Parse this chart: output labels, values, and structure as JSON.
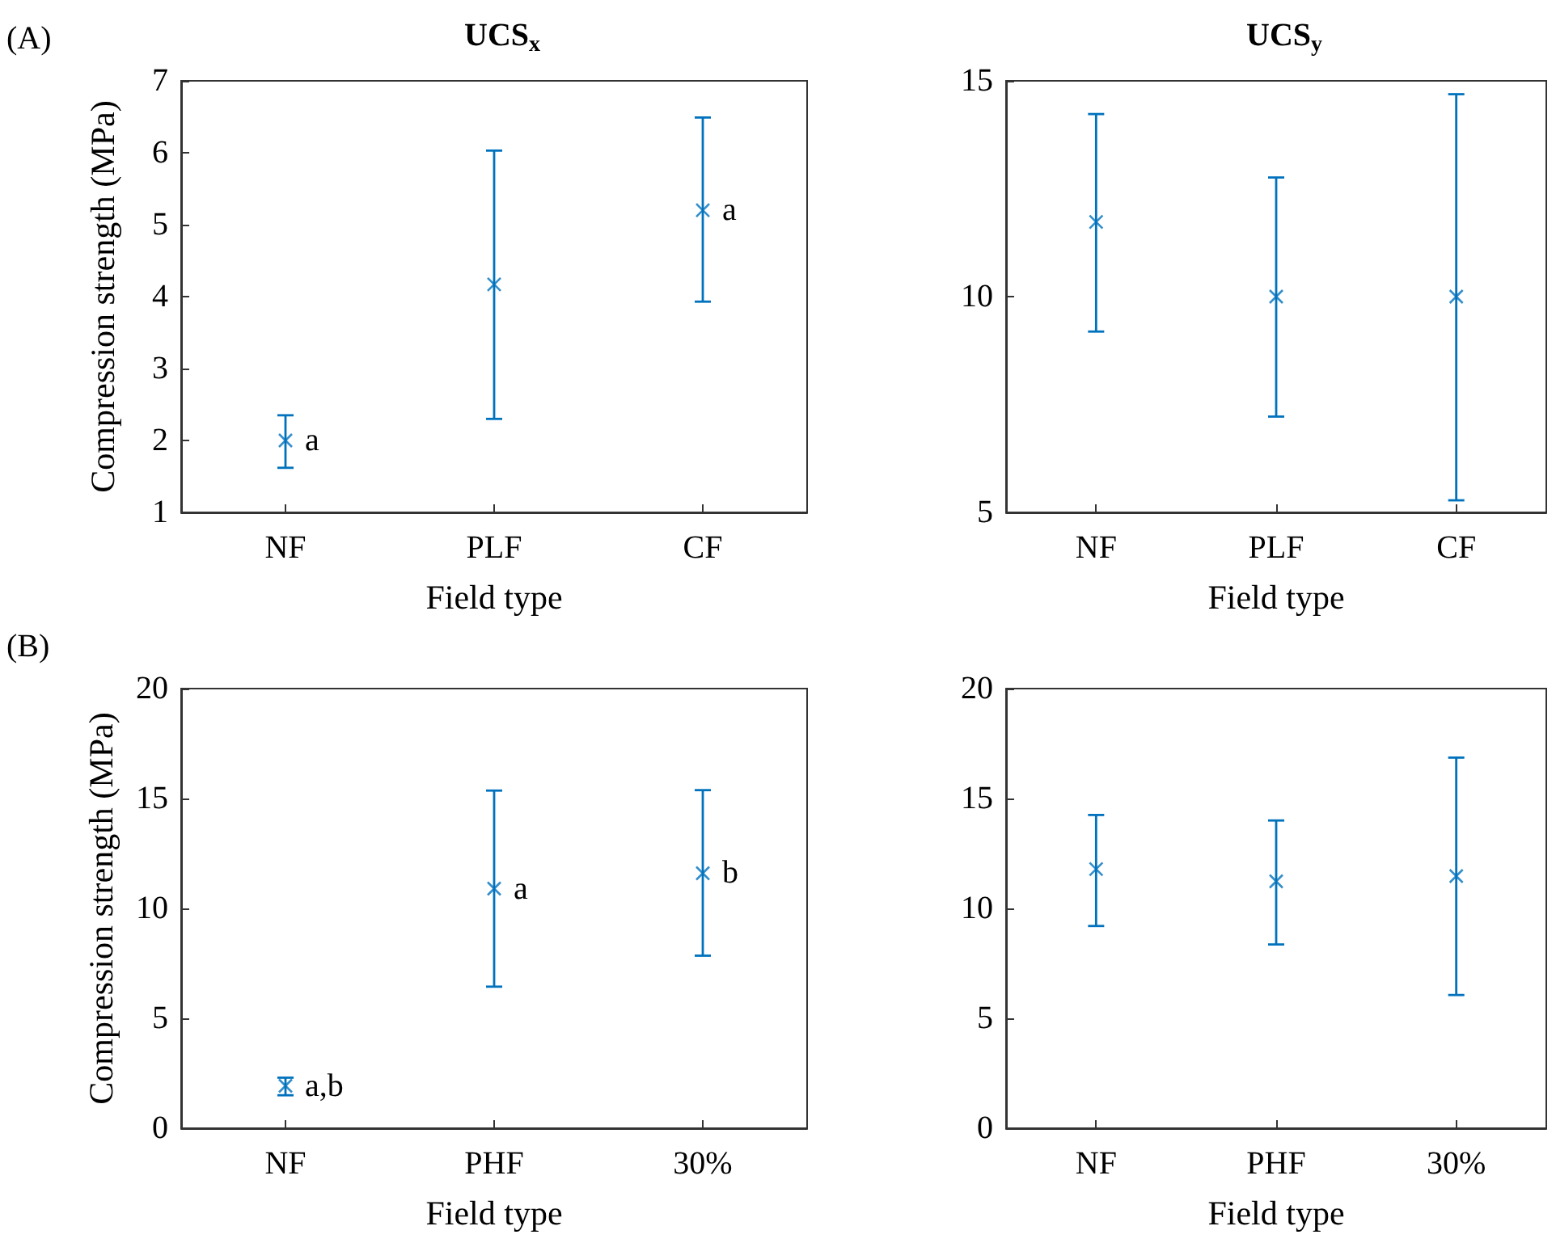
{
  "chart_data": [
    {
      "type": "scatter",
      "title": "UCS$_{x}$",
      "xlabel": "Field type",
      "ylabel": "Compression strength (MPa)",
      "categories": [
        "NF",
        "PLF",
        "CF"
      ],
      "color": "#0072bd",
      "marker": "cross",
      "grid": false,
      "values": [
        2.0,
        4.17,
        5.2
      ],
      "errors": [
        [
          1.62,
          2.35
        ],
        [
          2.3,
          6.03
        ],
        [
          3.93,
          6.49
        ]
      ],
      "ylim": [
        1,
        7
      ],
      "yticks": [
        1,
        2,
        3,
        4,
        5,
        6,
        7
      ],
      "annotations": [
        "(A)",
        {
          "text": "a",
          "x": "NF",
          "y": 2.0
        },
        {
          "text": "a",
          "x": "CF",
          "y": 5.2
        }
      ]
    },
    {
      "type": "scatter",
      "title": "UCS$_{y}$",
      "xlabel": "Field type",
      "categories": [
        "NF",
        "PLF",
        "CF"
      ],
      "color": "#0072bd",
      "marker": "cross",
      "grid": false,
      "values": [
        11.73,
        10.0,
        10.0
      ],
      "errors": [
        [
          9.19,
          14.23
        ],
        [
          7.22,
          12.76
        ],
        [
          5.28,
          14.69
        ]
      ],
      "ylim": [
        5,
        15
      ],
      "yticks": [
        5,
        10,
        15
      ]
    },
    {
      "type": "scatter",
      "xlabel": "Field type",
      "ylabel": "Compression strength (MPa)",
      "categories": [
        "NF",
        "PHF",
        "30%"
      ],
      "color": "#0072bd",
      "marker": "cross",
      "grid": false,
      "values": [
        1.93,
        10.9,
        11.6
      ],
      "errors": [
        [
          1.5,
          2.3
        ],
        [
          6.44,
          15.36
        ],
        [
          7.85,
          15.38
        ]
      ],
      "ylim": [
        0,
        20
      ],
      "yticks": [
        0,
        5,
        10,
        15,
        20
      ],
      "annotations": [
        "(B)",
        {
          "text": "a,b",
          "x": "NF",
          "y": 1.93
        },
        {
          "text": "a",
          "x": "PHF",
          "y": 10.9
        },
        {
          "text": "b",
          "x": "30%",
          "y": 11.6
        }
      ]
    },
    {
      "type": "scatter",
      "xlabel": "Field type",
      "categories": [
        "NF",
        "PHF",
        "30%"
      ],
      "color": "#0072bd",
      "marker": "cross",
      "grid": false,
      "values": [
        11.79,
        11.23,
        11.47
      ],
      "errors": [
        [
          9.2,
          14.25
        ],
        [
          8.36,
          14.0
        ],
        [
          6.06,
          16.86
        ]
      ],
      "ylim": [
        0,
        20
      ],
      "yticks": [
        0,
        5,
        10,
        15,
        20
      ]
    }
  ]
}
